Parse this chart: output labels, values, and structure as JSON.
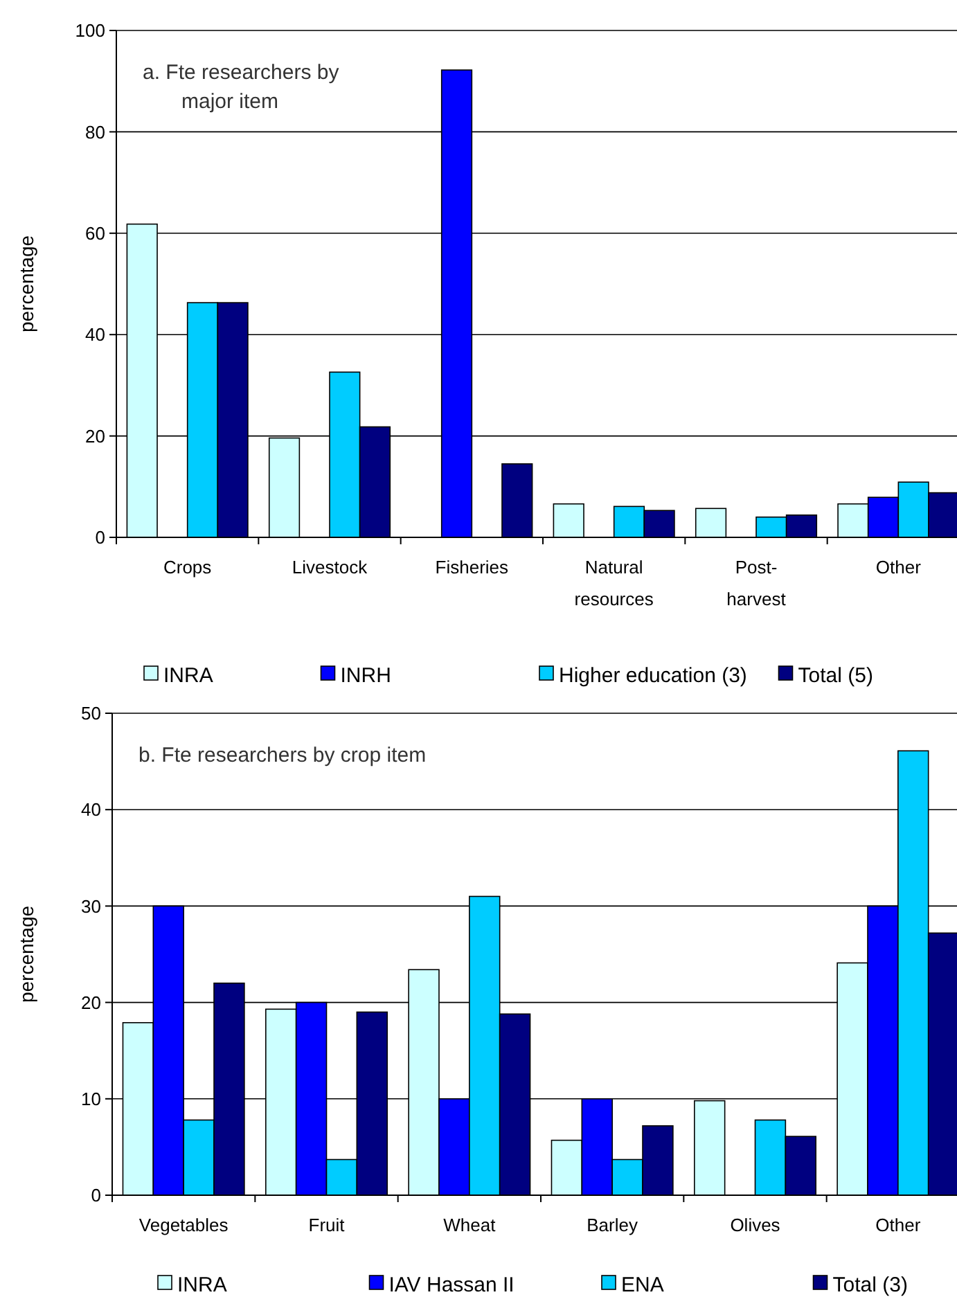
{
  "chart_data": [
    {
      "type": "bar",
      "title": "a. Fte researchers by major item",
      "ylabel": "percentage",
      "categories": [
        "Crops",
        "Livestock",
        "Fisheries",
        "Natural resources",
        "Post-harvest",
        "Other"
      ],
      "series": [
        {
          "name": "INRA",
          "color": "#ccffff",
          "values": [
            61.8,
            19.6,
            null,
            6.6,
            5.7,
            6.6
          ]
        },
        {
          "name": "INRH",
          "color": "#0000ff",
          "values": [
            null,
            null,
            92.2,
            null,
            null,
            7.9
          ]
        },
        {
          "name": "Higher education (3)",
          "color": "#00ccff",
          "values": [
            46.3,
            32.6,
            null,
            6.1,
            4.0,
            10.9
          ]
        },
        {
          "name": "Total (5)",
          "color": "#000080",
          "values": [
            46.3,
            21.8,
            14.5,
            5.3,
            4.4,
            8.8
          ]
        }
      ],
      "ylim": [
        0,
        100
      ],
      "yticks": [
        0,
        20,
        40,
        60,
        80,
        100
      ],
      "grid": "y",
      "legend": "bottom"
    },
    {
      "type": "bar",
      "title": "b. Fte researchers by crop item",
      "ylabel": "percentage",
      "categories": [
        "Vegetables",
        "Fruit",
        "Wheat",
        "Barley",
        "Olives",
        "Other"
      ],
      "series": [
        {
          "name": "INRA",
          "color": "#ccffff",
          "values": [
            17.9,
            19.3,
            23.4,
            5.7,
            9.8,
            24.1
          ]
        },
        {
          "name": "IAV Hassan II",
          "color": "#0000ff",
          "values": [
            30,
            20,
            10,
            10,
            null,
            30
          ]
        },
        {
          "name": "ENA",
          "color": "#00ccff",
          "values": [
            7.8,
            3.7,
            31,
            3.7,
            7.8,
            46.1
          ]
        },
        {
          "name": "Total (3)",
          "color": "#000080",
          "values": [
            22,
            19,
            18.8,
            7.2,
            6.1,
            27.2
          ]
        }
      ],
      "ylim": [
        0,
        50
      ],
      "yticks": [
        0,
        10,
        20,
        30,
        40,
        50
      ],
      "grid": "y",
      "legend": "bottom"
    }
  ]
}
